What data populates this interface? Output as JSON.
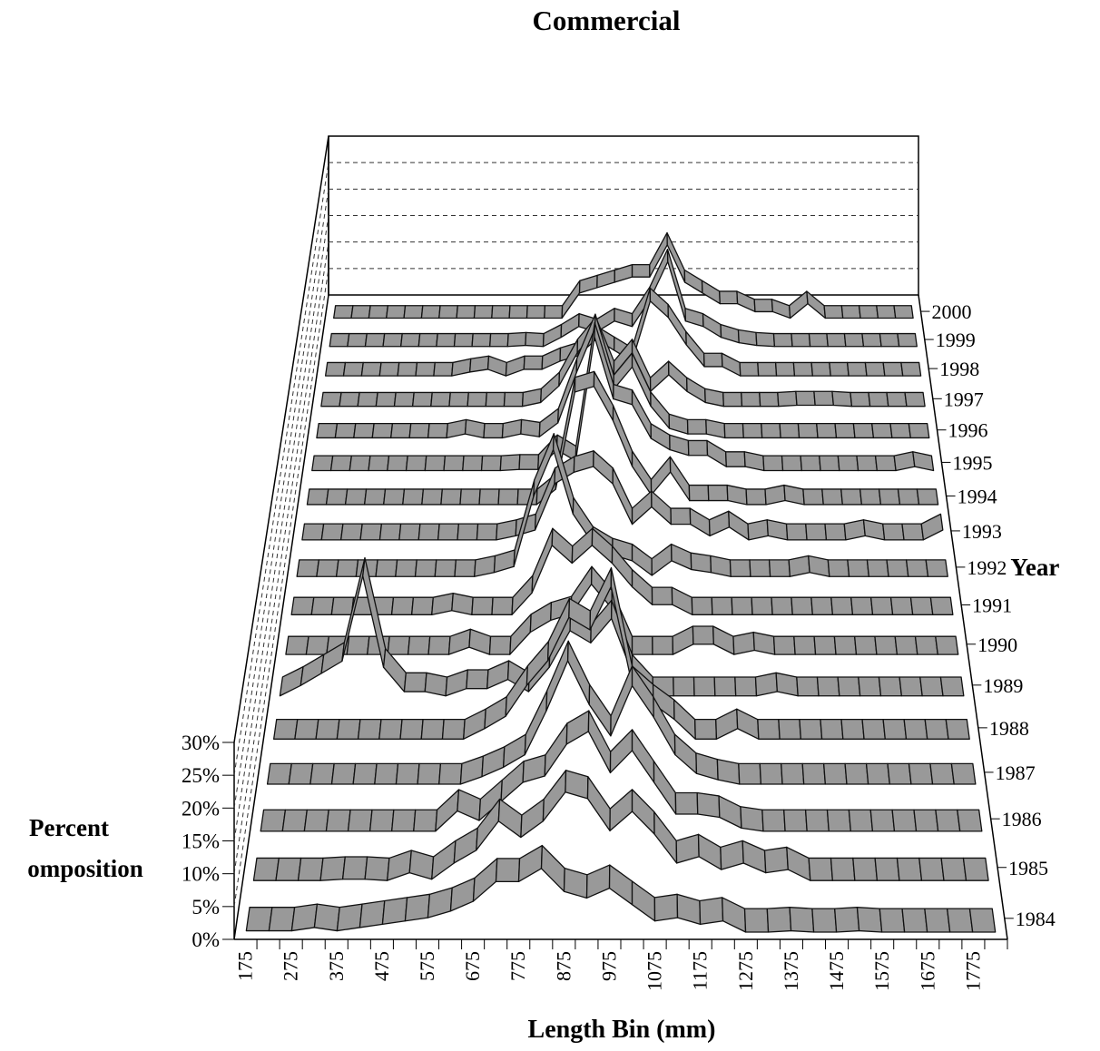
{
  "chart_data": {
    "type": "ribbon3d",
    "title": "Commercial",
    "x_label": "Length Bin (mm)",
    "y_label": [
      "Percent",
      "omposition"
    ],
    "z_label": "Year",
    "color": "#999999",
    "categories": [
      "175",
      null,
      "275",
      null,
      "375",
      null,
      "475",
      null,
      "575",
      null,
      "675",
      null,
      "775",
      null,
      "875",
      null,
      "975",
      null,
      "1075",
      null,
      "1175",
      null,
      "1275",
      null,
      "1375",
      null,
      "1475",
      null,
      "1575",
      null,
      "1675",
      null,
      "1775",
      null
    ],
    "ylim": [
      0,
      30
    ],
    "yticks": [
      {
        "value": 0,
        "label": "0%"
      },
      {
        "value": 5,
        "label": "5%"
      },
      {
        "value": 10,
        "label": "10%"
      },
      {
        "value": 15,
        "label": "15%"
      },
      {
        "value": 20,
        "label": "20%"
      },
      {
        "value": 25,
        "label": "25%"
      },
      {
        "value": 30,
        "label": "30%"
      }
    ],
    "grid": true,
    "series": [
      {
        "name": "1984",
        "values": [
          0.5,
          0.5,
          0.5,
          1.0,
          0.5,
          1.0,
          1.5,
          2.0,
          2.5,
          3.5,
          5.0,
          8.0,
          8.0,
          10.0,
          6.5,
          5.5,
          7.0,
          4.5,
          2.0,
          2.5,
          1.5,
          2.0,
          0.3,
          0.3,
          0.5,
          0.3,
          0.3,
          0.5,
          0.3,
          0.3,
          0.3,
          0.3,
          0.3,
          0.3
        ]
      },
      {
        "name": "1985",
        "values": [
          0.3,
          0.3,
          0.3,
          0.3,
          0.5,
          0.5,
          0.3,
          1.5,
          0.5,
          3.0,
          5.0,
          9.5,
          7.0,
          9.5,
          14.0,
          13.0,
          8.0,
          11.0,
          7.5,
          3.0,
          4.0,
          2.0,
          3.0,
          1.5,
          2.0,
          0.3,
          0.3,
          0.3,
          0.3,
          0.3,
          0.3,
          0.3,
          0.3,
          0.3
        ]
      },
      {
        "name": "1986",
        "values": [
          0.3,
          0.3,
          0.3,
          0.3,
          0.3,
          0.3,
          0.3,
          0.3,
          0.3,
          3.5,
          2.0,
          5.0,
          8.0,
          9.0,
          14.0,
          16.0,
          9.5,
          13.0,
          8.0,
          3.0,
          3.0,
          2.5,
          0.8,
          0.3,
          0.3,
          0.3,
          0.3,
          0.3,
          0.3,
          0.3,
          0.3,
          0.3,
          0.3,
          0.3
        ]
      },
      {
        "name": "1987",
        "values": [
          0.3,
          0.3,
          0.3,
          0.3,
          0.3,
          0.3,
          0.3,
          0.3,
          0.3,
          0.3,
          1.5,
          3.0,
          5.0,
          12.0,
          20.0,
          13.0,
          8.0,
          16.0,
          11.0,
          5.0,
          2.0,
          1.0,
          0.3,
          0.3,
          0.3,
          0.3,
          0.3,
          0.3,
          0.3,
          0.3,
          0.3,
          0.3,
          0.3,
          0.3
        ]
      },
      {
        "name": "1988",
        "values": [
          0.3,
          0.3,
          0.3,
          0.3,
          0.3,
          0.3,
          0.3,
          0.3,
          0.3,
          0.3,
          2.0,
          4.0,
          9.0,
          13.0,
          20.0,
          18.0,
          25.0,
          9.0,
          6.0,
          3.5,
          0.3,
          0.3,
          2.0,
          0.3,
          0.3,
          0.3,
          0.3,
          0.3,
          0.3,
          0.3,
          0.3,
          0.3,
          0.3,
          0.3
        ]
      },
      {
        "name": "1989",
        "values": [
          0.3,
          2.0,
          4.0,
          6.0,
          20.0,
          5.0,
          1.0,
          1.0,
          0.3,
          1.5,
          1.5,
          3.0,
          1.0,
          5.0,
          11.0,
          9.0,
          13.0,
          4.0,
          0.3,
          0.3,
          0.3,
          0.3,
          0.3,
          0.3,
          1.0,
          0.3,
          0.3,
          0.3,
          0.3,
          0.3,
          0.3,
          0.3,
          0.3,
          0.3
        ]
      },
      {
        "name": "1990",
        "values": [
          0.3,
          0.3,
          0.3,
          0.3,
          0.3,
          0.3,
          0.3,
          0.3,
          0.3,
          1.5,
          0.3,
          0.3,
          4.0,
          6.0,
          7.0,
          12.0,
          8.0,
          0.3,
          0.3,
          0.3,
          2.0,
          2.0,
          0.3,
          1.0,
          0.3,
          0.3,
          0.3,
          0.3,
          0.3,
          0.3,
          0.3,
          0.3,
          0.3,
          0.3
        ]
      },
      {
        "name": "1991",
        "values": [
          0.3,
          0.3,
          0.3,
          0.3,
          0.3,
          0.3,
          0.3,
          0.3,
          1.0,
          0.3,
          0.3,
          0.3,
          4.0,
          12.0,
          9.0,
          12.0,
          9.0,
          5.0,
          2.0,
          2.0,
          0.3,
          0.3,
          0.3,
          0.3,
          0.3,
          0.3,
          0.3,
          0.3,
          0.3,
          0.3,
          0.3,
          0.3,
          0.3,
          0.3
        ]
      },
      {
        "name": "1992",
        "values": [
          0.3,
          0.3,
          0.3,
          0.3,
          0.3,
          0.3,
          0.3,
          0.3,
          0.3,
          0.3,
          1.0,
          2.0,
          14.0,
          22.0,
          11.0,
          6.0,
          4.0,
          3.0,
          0.5,
          3.0,
          1.5,
          1.0,
          0.3,
          0.3,
          0.3,
          0.3,
          1.0,
          0.3,
          0.3,
          0.3,
          0.3,
          0.3,
          0.3,
          0.3
        ]
      },
      {
        "name": "1993",
        "values": [
          0.3,
          0.3,
          0.3,
          0.3,
          0.3,
          0.3,
          0.3,
          0.3,
          0.3,
          0.3,
          0.3,
          1.0,
          2.0,
          10.0,
          12.0,
          13.0,
          10.0,
          3.0,
          6.0,
          3.0,
          3.0,
          1.0,
          2.5,
          0.3,
          1.0,
          0.3,
          0.3,
          0.3,
          0.3,
          1.0,
          0.3,
          0.3,
          0.3,
          2.0
        ]
      },
      {
        "name": "1994",
        "values": [
          0.3,
          0.3,
          0.3,
          0.3,
          0.3,
          0.3,
          0.3,
          0.3,
          0.3,
          0.3,
          0.3,
          0.3,
          0.3,
          3.0,
          20.0,
          21.0,
          15.0,
          7.0,
          2.0,
          6.0,
          1.0,
          1.0,
          1.0,
          0.3,
          0.3,
          1.0,
          0.3,
          0.3,
          0.3,
          0.3,
          0.3,
          0.3,
          0.3,
          0.3
        ]
      },
      {
        "name": "1995",
        "values": [
          0.3,
          0.3,
          0.3,
          0.3,
          0.3,
          0.3,
          0.3,
          0.3,
          0.3,
          0.3,
          0.3,
          0.5,
          0.5,
          4.0,
          2.0,
          24.0,
          13.0,
          12.0,
          6.0,
          4.0,
          3.0,
          3.0,
          1.0,
          1.0,
          0.3,
          0.3,
          0.3,
          0.3,
          0.3,
          0.3,
          0.3,
          0.3,
          1.0,
          0.3
        ]
      },
      {
        "name": "1996",
        "values": [
          0.3,
          0.3,
          0.3,
          0.3,
          0.3,
          0.3,
          0.3,
          0.3,
          1.0,
          0.3,
          0.3,
          1.0,
          0.5,
          3.0,
          12.0,
          20.0,
          9.0,
          13.0,
          6.0,
          2.0,
          1.0,
          1.0,
          0.3,
          0.3,
          0.3,
          0.3,
          0.3,
          0.3,
          0.3,
          0.3,
          0.3,
          0.3,
          0.3,
          0.3
        ]
      },
      {
        "name": "1997",
        "values": [
          0.3,
          0.3,
          0.3,
          0.3,
          0.3,
          0.3,
          0.3,
          0.3,
          0.3,
          0.3,
          0.3,
          0.3,
          1.0,
          4.0,
          10.0,
          14.0,
          6.0,
          10.0,
          3.0,
          6.0,
          3.0,
          1.0,
          0.3,
          0.3,
          0.3,
          0.3,
          0.5,
          0.5,
          0.5,
          0.3,
          0.3,
          0.3,
          0.3,
          0.3
        ]
      },
      {
        "name": "1998",
        "values": [
          0.3,
          0.3,
          0.3,
          0.3,
          0.3,
          0.3,
          0.3,
          0.3,
          1.0,
          1.5,
          0.3,
          1.5,
          1.5,
          3.0,
          4.0,
          7.0,
          5.0,
          3.0,
          14.0,
          11.0,
          6.0,
          2.0,
          2.0,
          0.3,
          0.3,
          0.3,
          0.3,
          0.3,
          0.3,
          0.3,
          0.3,
          0.3,
          0.3,
          0.3
        ]
      },
      {
        "name": "1999",
        "values": [
          0.3,
          0.3,
          0.3,
          0.3,
          0.3,
          0.3,
          0.3,
          0.3,
          0.3,
          0.3,
          0.3,
          0.5,
          0.3,
          2.0,
          4.0,
          3.0,
          5.0,
          4.0,
          9.0,
          16.0,
          5.0,
          4.0,
          2.0,
          1.0,
          0.5,
          0.3,
          0.3,
          0.3,
          0.3,
          0.3,
          0.3,
          0.3,
          0.3,
          0.3
        ]
      },
      {
        "name": "2000",
        "values": [
          0.3,
          0.3,
          0.3,
          0.3,
          0.3,
          0.3,
          0.3,
          0.3,
          0.3,
          0.3,
          0.3,
          0.3,
          0.3,
          0.3,
          5.0,
          6.0,
          7.0,
          8.0,
          8.0,
          14.0,
          7.0,
          5.0,
          3.0,
          3.0,
          1.5,
          1.5,
          0.3,
          3.0,
          0.3,
          0.3,
          0.3,
          0.3,
          0.3,
          0.3
        ]
      }
    ]
  }
}
